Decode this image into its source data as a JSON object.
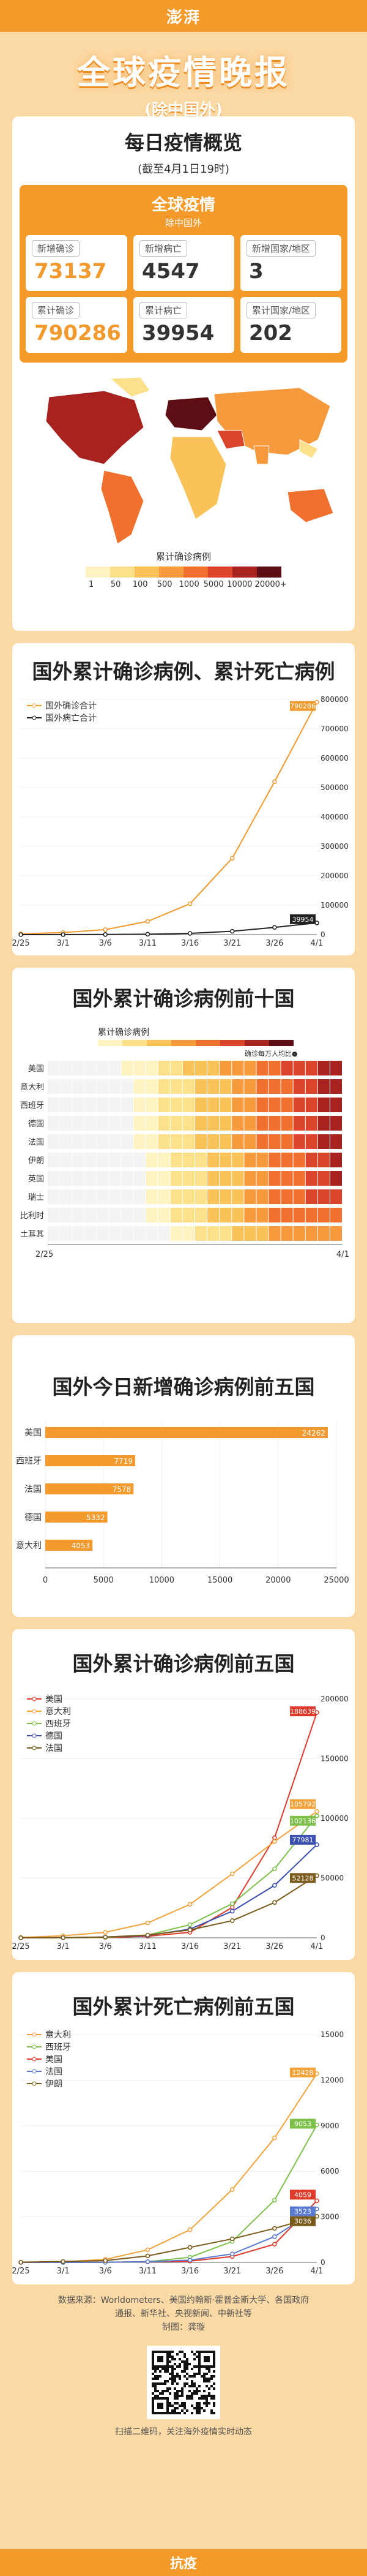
{
  "header": {
    "logo": "澎湃",
    "title": "全球疫情晚报",
    "subtitle": "(除中国外)"
  },
  "overview": {
    "title": "每日疫情概览",
    "date_note": "(截至4月1日19时)",
    "box_title": "全球疫情",
    "box_sub": "除中国外",
    "stats": [
      {
        "label": "新增确诊",
        "value": "73137",
        "style": "orange"
      },
      {
        "label": "新增病亡",
        "value": "4547",
        "style": "dark"
      },
      {
        "label": "新增国家/地区",
        "value": "3",
        "style": "dark"
      },
      {
        "label": "累计确诊",
        "value": "790286",
        "style": "orange"
      },
      {
        "label": "累计病亡",
        "value": "39954",
        "style": "dark"
      },
      {
        "label": "累计国家/地区",
        "value": "202",
        "style": "dark"
      }
    ],
    "map_legend_title": "累计确诊病例",
    "map_legend_ticks": [
      "1",
      "50",
      "100",
      "500",
      "1000",
      "5000",
      "10000",
      "20000+"
    ],
    "map_colors": [
      "#fff3c4",
      "#fde08a",
      "#fbc25a",
      "#f79a3e",
      "#f0702e",
      "#d9442a",
      "#a8221f",
      "#5c0e14"
    ]
  },
  "colors": {
    "bg": "#fbd9a4",
    "accent": "#f49a2a",
    "confirmed": "#f39a2e",
    "deaths": "#222222",
    "usa": "#e03a2a",
    "italy": "#f4a23a",
    "spain": "#7cc04a",
    "germany": "#3a4fb0",
    "france": "#7a5a1a",
    "iran": "#7a5a1a"
  },
  "chart_data": [
    {
      "type": "line",
      "title": "国外累计确诊病例、累计死亡病例",
      "x": [
        "2/25",
        "3/1",
        "3/6",
        "3/11",
        "3/16",
        "3/21",
        "3/26",
        "4/1"
      ],
      "ylim": [
        0,
        800000
      ],
      "yticks": [
        "0",
        "100000",
        "200000",
        "300000",
        "400000",
        "500000",
        "600000",
        "700000",
        "800000"
      ],
      "series": [
        {
          "name": "国外确诊合计",
          "last_label": "790286",
          "values": [
            2500,
            7000,
            17000,
            45000,
            105000,
            260000,
            520000,
            790286
          ]
        },
        {
          "name": "国外病亡合计",
          "last_label": "39954",
          "values": [
            50,
            150,
            400,
            1400,
            4200,
            11500,
            24500,
            39954
          ]
        }
      ]
    },
    {
      "type": "heatmap",
      "title": "国外累计确诊病例前十国",
      "legend_title": "累计确诊病例",
      "legend_note": "确诊每万人均比●",
      "countries": [
        "美国",
        "意大利",
        "西班牙",
        "德国",
        "法国",
        "伊朗",
        "英国",
        "瑞士",
        "比利时",
        "土耳其"
      ],
      "x_start": "2/25",
      "x_end": "4/1"
    },
    {
      "type": "bar",
      "title": "国外今日新增确诊病例前五国",
      "categories": [
        "美国",
        "西班牙",
        "法国",
        "德国",
        "意大利"
      ],
      "values": [
        24262,
        7719,
        7578,
        5332,
        4053
      ],
      "ylim": [
        0,
        25000
      ],
      "xticks": [
        "0",
        "5000",
        "10000",
        "15000",
        "20000",
        "25000"
      ]
    },
    {
      "type": "line",
      "title": "国外累计确诊病例前五国",
      "x": [
        "2/25",
        "3/1",
        "3/6",
        "3/11",
        "3/16",
        "3/21",
        "3/26",
        "4/1"
      ],
      "ylim": [
        0,
        200000
      ],
      "yticks": [
        "0",
        "50000",
        "100000",
        "150000",
        "200000"
      ],
      "series": [
        {
          "name": "美国",
          "last_label": "188639",
          "values": [
            50,
            75,
            260,
            1300,
            4600,
            25500,
            83800,
            188639
          ]
        },
        {
          "name": "意大利",
          "last_label": "105792",
          "values": [
            320,
            1700,
            4600,
            12500,
            28000,
            53600,
            80600,
            105792
          ]
        },
        {
          "name": "西班牙",
          "last_label": "102136",
          "values": [
            10,
            85,
            400,
            2300,
            11000,
            28600,
            57800,
            102136
          ]
        },
        {
          "name": "德国",
          "last_label": "77981",
          "values": [
            20,
            130,
            700,
            1900,
            7300,
            22300,
            43900,
            77981
          ]
        },
        {
          "name": "法国",
          "last_label": "52128",
          "values": [
            15,
            130,
            650,
            2300,
            6600,
            14400,
            29600,
            52128
          ]
        }
      ]
    },
    {
      "type": "line",
      "title": "国外累计死亡病例前五国",
      "x": [
        "2/25",
        "3/1",
        "3/6",
        "3/11",
        "3/16",
        "3/21",
        "3/26",
        "4/1"
      ],
      "ylim": [
        0,
        15000
      ],
      "yticks": [
        "0",
        "3000",
        "6000",
        "9000",
        "12000",
        "15000"
      ],
      "series": [
        {
          "name": "意大利",
          "last_label": "12428",
          "values": [
            10,
            40,
            200,
            830,
            2150,
            4800,
            8200,
            12428
          ]
        },
        {
          "name": "西班牙",
          "last_label": "9053",
          "values": [
            0,
            0,
            5,
            50,
            340,
            1380,
            4100,
            9053
          ]
        },
        {
          "name": "美国",
          "last_label": "4059",
          "values": [
            0,
            1,
            14,
            38,
            85,
            390,
            1200,
            4059
          ]
        },
        {
          "name": "法国",
          "last_label": "3523",
          "values": [
            2,
            2,
            9,
            48,
            150,
            560,
            1700,
            3523
          ]
        },
        {
          "name": "伊朗",
          "last_label": "3036",
          "values": [
            16,
            60,
            120,
            430,
            990,
            1550,
            2240,
            3036
          ]
        }
      ]
    }
  ],
  "footer": {
    "sources": "数据来源：Worldometers、美国约翰斯·霍普金斯大学、各国政府",
    "sources2": "通报、新华社、央视新闻、中新社等",
    "maker": "制图：龚璇",
    "qr_note": "扫描二维码，关注海外疫情实时动态",
    "bottom": "抗疫"
  }
}
